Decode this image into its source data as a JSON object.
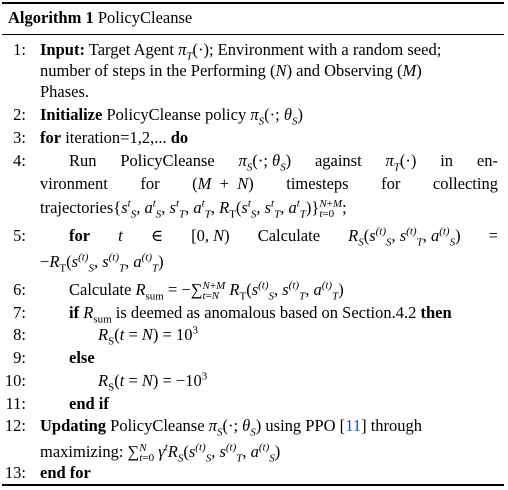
{
  "title": {
    "label": "Algorithm 1",
    "name": "PolicyCleanse"
  },
  "kw": {
    "input": "Input:",
    "initialize": "Initialize",
    "for": "for",
    "do": "do",
    "if": "if",
    "then": "then",
    "else": "else",
    "end_if": "end if",
    "updating": "Updating",
    "end_for": "end for"
  },
  "lines": {
    "l1": {
      "num": "1:",
      "a": "Target Agent",
      "b": "; Environment with a random seed;",
      "c": "number of steps in the Performing (",
      "d": ") and Observing (",
      "e": "Phases."
    },
    "l2": {
      "num": "2:",
      "a": "PolicyCleanse policy"
    },
    "l3": {
      "num": "3:",
      "a": "iteration=1,2,..."
    },
    "l4": {
      "num": "4:",
      "a1": "Run",
      "a2": "PolicyCleanse",
      "a3": "against",
      "a4": "in",
      "a5": "en-",
      "b1": "vironment",
      "b2": "for",
      "b3": "timesteps",
      "b4": "for",
      "b5": "collecting",
      "c": "trajectories"
    },
    "l5": {
      "num": "5:",
      "a1": "for",
      "a3": "Calculate"
    },
    "l6": {
      "num": "6:",
      "a": "Calculate"
    },
    "l7": {
      "num": "7:",
      "a": "is deemed as anomalous based on Section.4.2"
    },
    "l8": {
      "num": "8:"
    },
    "l9": {
      "num": "9:"
    },
    "l10": {
      "num": "10:"
    },
    "l11": {
      "num": "11:"
    },
    "l12": {
      "num": "12:",
      "a": "PolicyCleanse",
      "b": "using PPO [",
      "ref": "11",
      "c": "] through",
      "d": "maximizing:"
    },
    "l13": {
      "num": "13:"
    }
  }
}
